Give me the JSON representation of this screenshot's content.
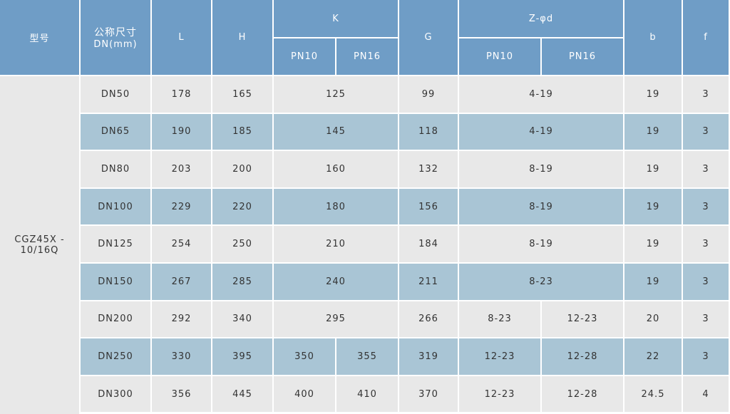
{
  "table": {
    "header": {
      "model": "型号",
      "nominal_size": "公称尺寸",
      "nominal_size_unit": "DN(mm)",
      "l": "L",
      "h": "H",
      "k": "K",
      "k_sub": [
        "PN10",
        "PN16"
      ],
      "g": "G",
      "z": "Z-φd",
      "z_sub": [
        "PN10",
        "PN16"
      ],
      "b": "b",
      "f": "f"
    },
    "model": [
      "CGZ45X -",
      "10/16Q"
    ],
    "rows": [
      {
        "dn": "DN50",
        "l": "178",
        "h": "165",
        "k": [
          "125"
        ],
        "g": "99",
        "z": [
          "4-19"
        ],
        "b": "19",
        "f": "3"
      },
      {
        "dn": "DN65",
        "l": "190",
        "h": "185",
        "k": [
          "145"
        ],
        "g": "118",
        "z": [
          "4-19"
        ],
        "b": "19",
        "f": "3"
      },
      {
        "dn": "DN80",
        "l": "203",
        "h": "200",
        "k": [
          "160"
        ],
        "g": "132",
        "z": [
          "8-19"
        ],
        "b": "19",
        "f": "3"
      },
      {
        "dn": "DN100",
        "l": "229",
        "h": "220",
        "k": [
          "180"
        ],
        "g": "156",
        "z": [
          "8-19"
        ],
        "b": "19",
        "f": "3"
      },
      {
        "dn": "DN125",
        "l": "254",
        "h": "250",
        "k": [
          "210"
        ],
        "g": "184",
        "z": [
          "8-19"
        ],
        "b": "19",
        "f": "3"
      },
      {
        "dn": "DN150",
        "l": "267",
        "h": "285",
        "k": [
          "240"
        ],
        "g": "211",
        "z": [
          "8-23"
        ],
        "b": "19",
        "f": "3"
      },
      {
        "dn": "DN200",
        "l": "292",
        "h": "340",
        "k": [
          "295"
        ],
        "g": "266",
        "z": [
          "8-23",
          "12-23"
        ],
        "b": "20",
        "f": "3"
      },
      {
        "dn": "DN250",
        "l": "330",
        "h": "395",
        "k": [
          "350",
          "355"
        ],
        "g": "319",
        "z": [
          "12-23",
          "12-28"
        ],
        "b": "22",
        "f": "3"
      },
      {
        "dn": "DN300",
        "l": "356",
        "h": "445",
        "k": [
          "400",
          "410"
        ],
        "g": "370",
        "z": [
          "12-23",
          "12-28"
        ],
        "b": "24.5",
        "f": "4"
      }
    ]
  }
}
